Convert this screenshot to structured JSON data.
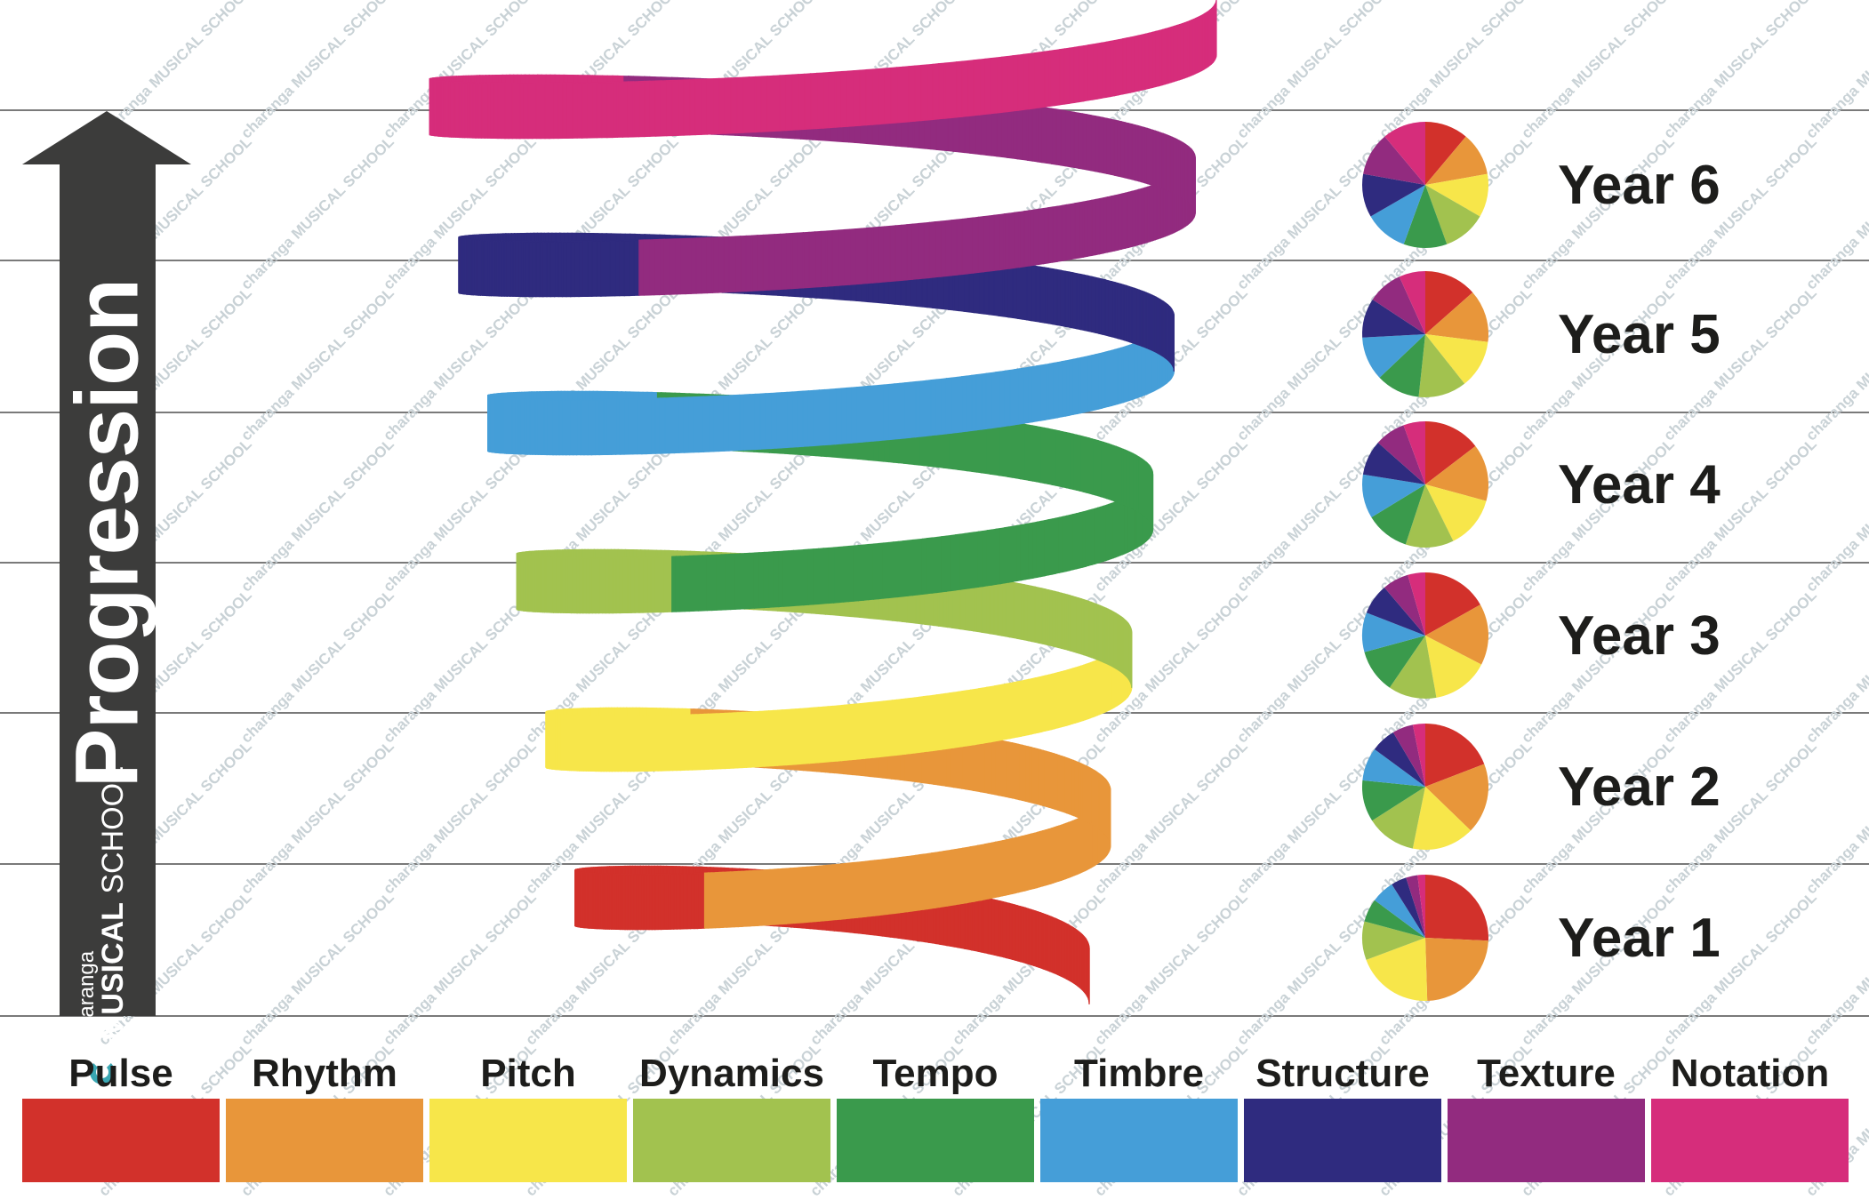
{
  "progression": {
    "label": "Progression",
    "brand_small": "charanga",
    "brand_big_bold": "MUSICAL",
    "brand_big_rest": " SCHOOL"
  },
  "watermark": "charanga MUSICAL SCHOOL",
  "elements": [
    {
      "name": "Pulse",
      "color": "#d2312b"
    },
    {
      "name": "Rhythm",
      "color": "#e8963a"
    },
    {
      "name": "Pitch",
      "color": "#f7e64a"
    },
    {
      "name": "Dynamics",
      "color": "#a2c24f"
    },
    {
      "name": "Tempo",
      "color": "#3a9a4c"
    },
    {
      "name": "Timbre",
      "color": "#459ed8"
    },
    {
      "name": "Structure",
      "color": "#2f2b7f"
    },
    {
      "name": "Texture",
      "color": "#922b7f"
    },
    {
      "name": "Notation",
      "color": "#d62d7b"
    }
  ],
  "years": [
    {
      "label": "Year 6",
      "weights": [
        1,
        1,
        1,
        1,
        1,
        1,
        1,
        1,
        1
      ]
    },
    {
      "label": "Year 5",
      "weights": [
        1.2,
        1.2,
        1.1,
        1.1,
        1,
        1,
        0.9,
        0.8,
        0.6
      ]
    },
    {
      "label": "Year 4",
      "weights": [
        1.3,
        1.3,
        1.2,
        1.1,
        1,
        1,
        0.8,
        0.7,
        0.5
      ]
    },
    {
      "label": "Year 3",
      "weights": [
        1.5,
        1.4,
        1.3,
        1.1,
        1,
        0.9,
        0.7,
        0.6,
        0.4
      ]
    },
    {
      "label": "Year 2",
      "weights": [
        1.8,
        1.7,
        1.5,
        1.2,
        1,
        0.8,
        0.6,
        0.5,
        0.3
      ]
    },
    {
      "label": "Year 1",
      "weights": [
        2.6,
        2.4,
        2.0,
        1.0,
        0.6,
        0.6,
        0.4,
        0.3,
        0.2
      ]
    }
  ]
}
